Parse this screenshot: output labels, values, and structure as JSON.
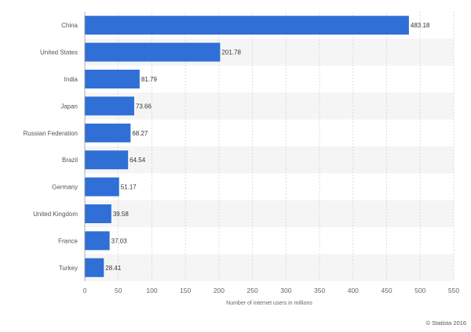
{
  "chart_data": {
    "type": "bar",
    "orientation": "horizontal",
    "categories": [
      "China",
      "United States",
      "India",
      "Japan",
      "Russian Federation",
      "Brazil",
      "Germany",
      "United Kingdom",
      "France",
      "Turkey"
    ],
    "values": [
      483.18,
      201.78,
      81.79,
      73.66,
      68.27,
      64.54,
      51.17,
      39.58,
      37.03,
      28.41
    ],
    "value_labels": [
      "483.18",
      "201.78",
      "81.79",
      "73.66",
      "68.27",
      "64.54",
      "51.17",
      "39.58",
      "37.03",
      "28.41"
    ],
    "xlabel": "Number of internet users in millions",
    "xlim": [
      0,
      550
    ],
    "xticks": [
      0,
      50,
      100,
      150,
      200,
      250,
      300,
      350,
      400,
      450,
      500,
      550
    ],
    "grid": "vertical dashed",
    "bar_color": "#2f6fd6",
    "band_color": "#f5f5f5"
  },
  "credit": "© Statista 2016"
}
